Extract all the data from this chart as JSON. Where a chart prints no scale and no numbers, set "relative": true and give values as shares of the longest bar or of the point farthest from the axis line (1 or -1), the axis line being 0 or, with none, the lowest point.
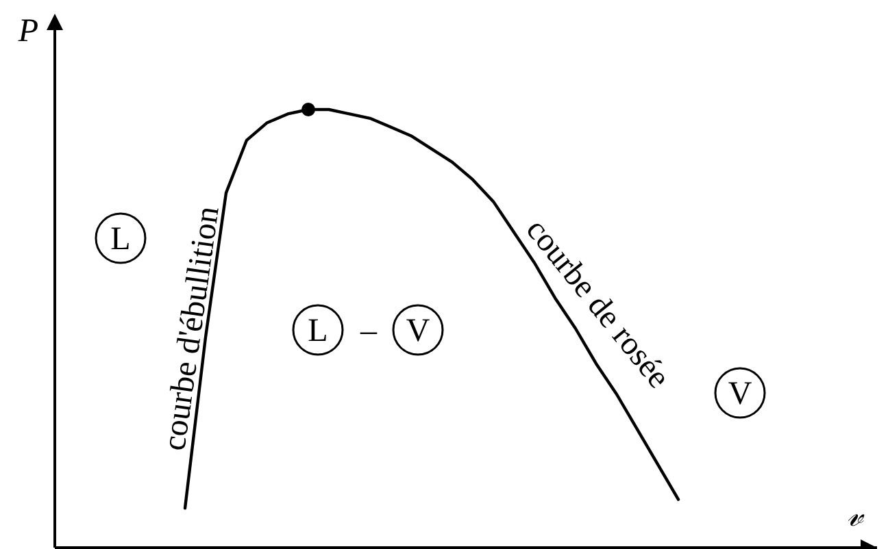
{
  "chart_data": {
    "type": "line",
    "relative": true,
    "xlabel": "𝓋",
    "ylabel": "P",
    "line_style": "solid",
    "categories": [
      null,
      null,
      null,
      null,
      null,
      null,
      null,
      null,
      null,
      null,
      null,
      null,
      null,
      null,
      null,
      null,
      null,
      null,
      null,
      null,
      null,
      null,
      null,
      null,
      null
    ],
    "series": [
      {
        "color": "#000000",
        "values": [
          0.09,
          0.48,
          0.81,
          0.93,
          0.97,
          0.99,
          1,
          1,
          0.99,
          0.98,
          0.96,
          0.94,
          0.91,
          0.88,
          0.84,
          0.79,
          0.72,
          0.65,
          0.57,
          0.5,
          0.42,
          0.35,
          0.27,
          0.19,
          0.11
        ]
      }
    ],
    "annotations": [
      "courbe d'ébullition",
      "courbe de rosée",
      "L",
      "L",
      "–",
      "V",
      "V"
    ]
  }
}
